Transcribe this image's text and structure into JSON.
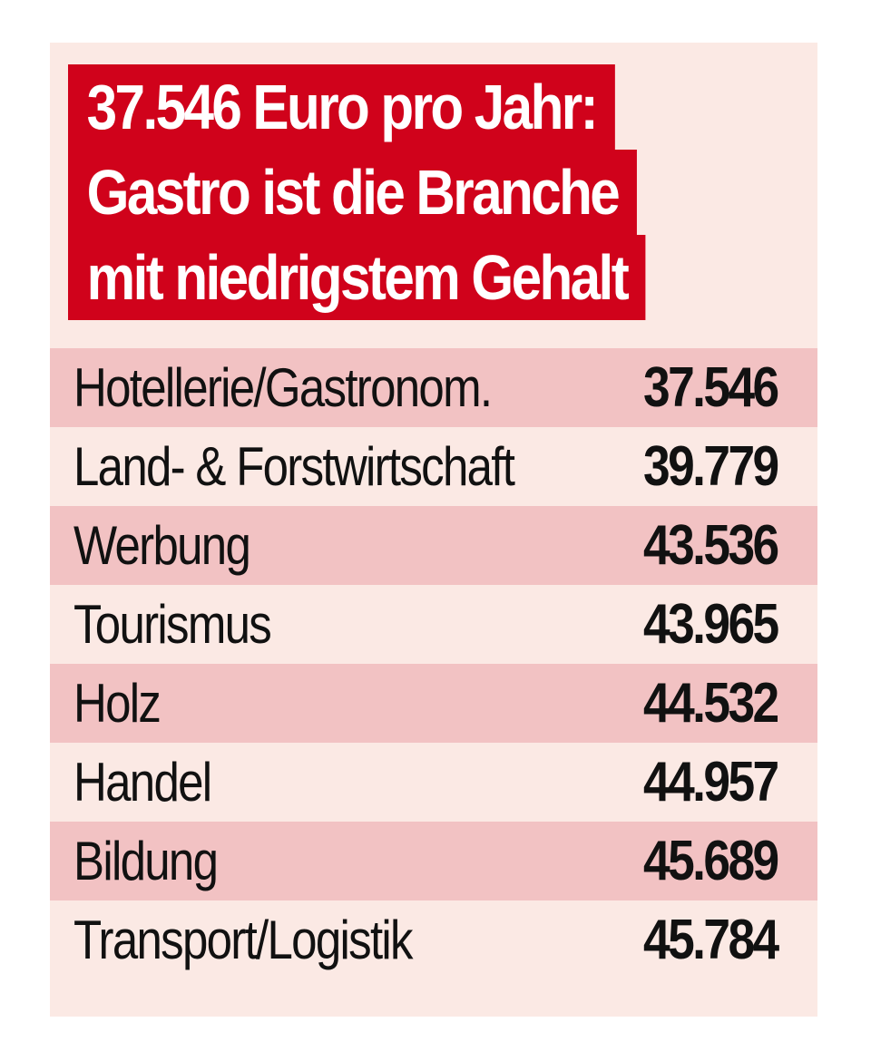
{
  "headline": {
    "lines": [
      "37.546 Euro pro Jahr:",
      "Gastro ist die Branche",
      "mit niedrigstem Gehalt"
    ]
  },
  "colors": {
    "headline_bg": "#d0021b",
    "card_bg": "#fbe9e4",
    "row_shade": "#f2c2c3",
    "text": "#111111"
  },
  "chart_data": {
    "type": "table",
    "title": "37.546 Euro pro Jahr: Gastro ist die Branche mit niedrigstem Gehalt",
    "categories": [
      "Hotellerie/Gastronom.",
      "Land- & Forstwirtschaft",
      "Werbung",
      "Tourismus",
      "Holz",
      "Handel",
      "Bildung",
      "Transport/Logistik"
    ],
    "value_labels": [
      "37.546",
      "39.779",
      "43.536",
      "43.965",
      "44.532",
      "44.957",
      "45.689",
      "45.784"
    ],
    "values": [
      37546,
      39779,
      43536,
      43965,
      44532,
      44957,
      45689,
      45784
    ]
  }
}
